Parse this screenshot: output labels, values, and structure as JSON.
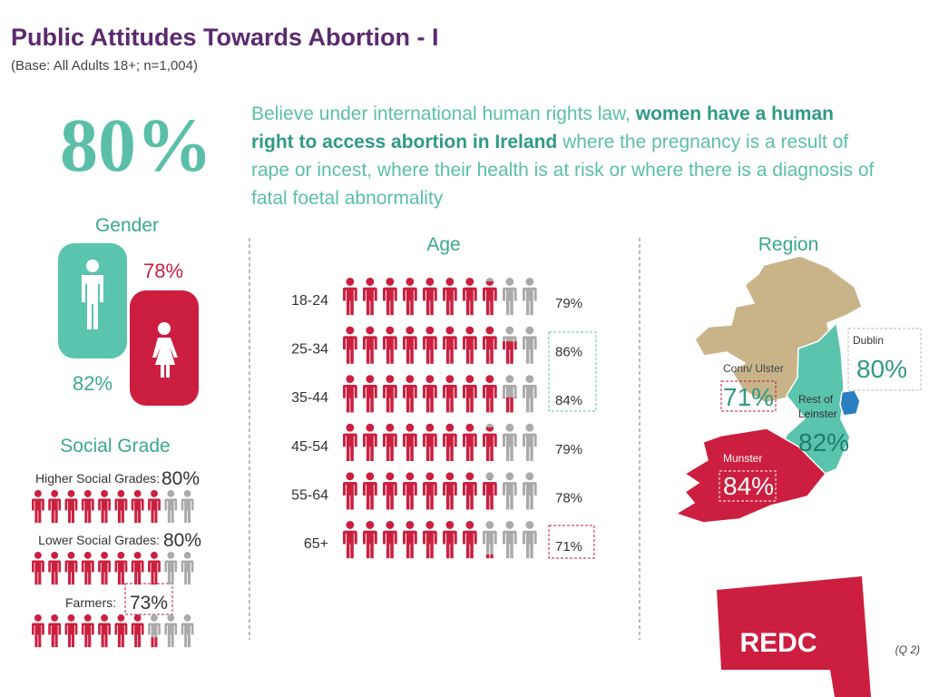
{
  "header": {
    "title": "Public Attitudes Towards Abortion - I",
    "base": "(Base: All Adults 18+; n=1,004)"
  },
  "headline": {
    "value": 80,
    "label": "80%",
    "text": [
      "Believe under international human rights law, ",
      "women have a human right to access abortion in Ireland",
      " where the pregnancy is a result of rape or incest, where their health is at risk or where there is a diagnosis of fatal foetal abnormality"
    ]
  },
  "gender": {
    "title": "Gender",
    "male": {
      "value": 82,
      "label": "82%"
    },
    "female": {
      "value": 78,
      "label": "78%"
    }
  },
  "social_grade": {
    "title": "Social Grade",
    "rows": [
      {
        "name": "Higher Social Grades:",
        "value": 80,
        "label": "80%"
      },
      {
        "name": "Lower Social Grades:",
        "value": 80,
        "label": "80%"
      },
      {
        "name": "Farmers:",
        "value": 73,
        "label": "73%"
      }
    ]
  },
  "age": {
    "title": "Age",
    "rows": [
      {
        "name": "18-24",
        "value": 79,
        "label": "79%"
      },
      {
        "name": "25-34",
        "value": 86,
        "label": "86%"
      },
      {
        "name": "35-44",
        "value": 84,
        "label": "84%"
      },
      {
        "name": "45-54",
        "value": 79,
        "label": "79%"
      },
      {
        "name": "55-64",
        "value": 78,
        "label": "78%"
      },
      {
        "name": "65+",
        "value": 71,
        "label": "71%"
      }
    ]
  },
  "region": {
    "title": "Region",
    "areas": [
      {
        "name": "Dublin",
        "value": 80,
        "label": "80%"
      },
      {
        "name": "Conn/ Ulster",
        "value": 71,
        "label": "71%"
      },
      {
        "name": "Rest of Leinster",
        "value": 82,
        "label": "82%"
      },
      {
        "name": "Munster",
        "value": 84,
        "label": "84%"
      }
    ]
  },
  "logo": "REDC",
  "footnote": "(Q 2)"
}
